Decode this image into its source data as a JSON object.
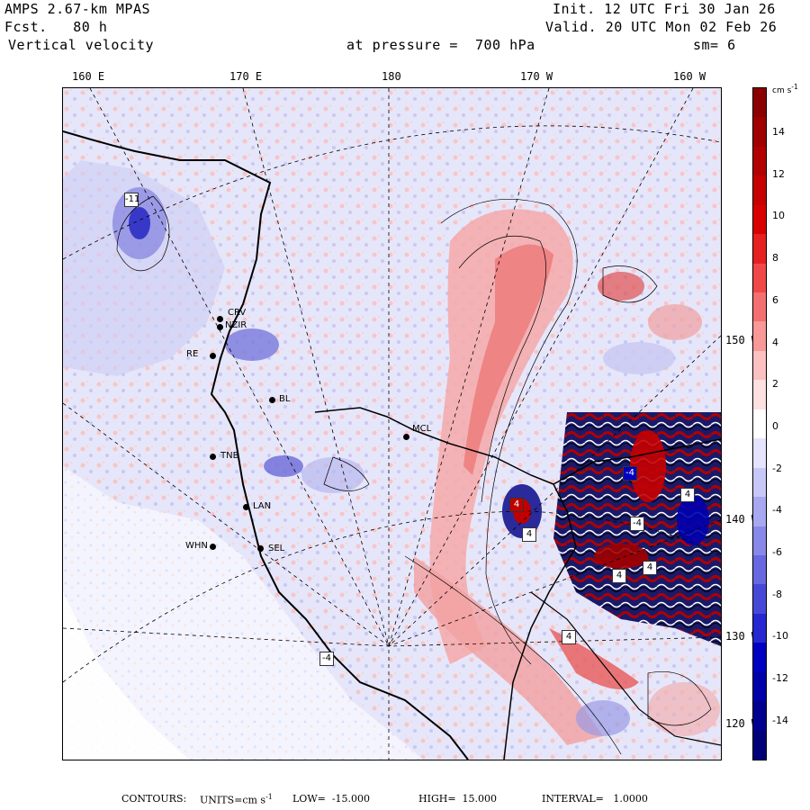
{
  "header": {
    "model": "AMPS 2.67-km MPAS",
    "forecast": "Fcst.   80 h",
    "field": "Vertical velocity",
    "init": "Init. 12 UTC Fri 30 Jan 26",
    "valid": "Valid. 20 UTC Mon 02 Feb 26",
    "level": "at pressure =  700 hPa",
    "smoothing": "sm= 6"
  },
  "longitude_labels": [
    "160 E",
    "170 E",
    "180",
    "170 W",
    "160 W"
  ],
  "latitude_labels": [
    "150 W",
    "140 W",
    "130 W",
    "120 W"
  ],
  "stations": [
    "CRV",
    "NZIR",
    "RE",
    "BL",
    "MCL",
    "TNB",
    "LAN",
    "WHN",
    "SEL"
  ],
  "extrema": [
    "-11",
    "4",
    "4",
    "4",
    "-4",
    "-4",
    "4",
    "4",
    "4",
    "-4"
  ],
  "colorbar": {
    "units": "cm s",
    "units_exp": "-1",
    "tick_labels": [
      "14",
      "12",
      "10",
      "8",
      "6",
      "4",
      "2",
      "0",
      "-2",
      "-4",
      "-6",
      "-8",
      "-10",
      "-12",
      "-14"
    ],
    "colors": [
      "#8b0000",
      "#a00000",
      "#b30000",
      "#c60000",
      "#d80000",
      "#e62020",
      "#f04848",
      "#f47070",
      "#f89898",
      "#fbc0c0",
      "#fde0e0",
      "#ffffff",
      "#e4e4ff",
      "#c8c8f8",
      "#a8a8f0",
      "#8888e8",
      "#6868e0",
      "#4848d8",
      "#2828d0",
      "#0000c0",
      "#0000a8",
      "#000090",
      "#000078"
    ]
  },
  "footer": {
    "contours": "CONTOURS:",
    "units_label": "UNITS=cm s",
    "units_exp": "-1",
    "low": "LOW=  -15.000",
    "high": "HIGH=  15.000",
    "interval": "INTERVAL=   1.0000"
  }
}
